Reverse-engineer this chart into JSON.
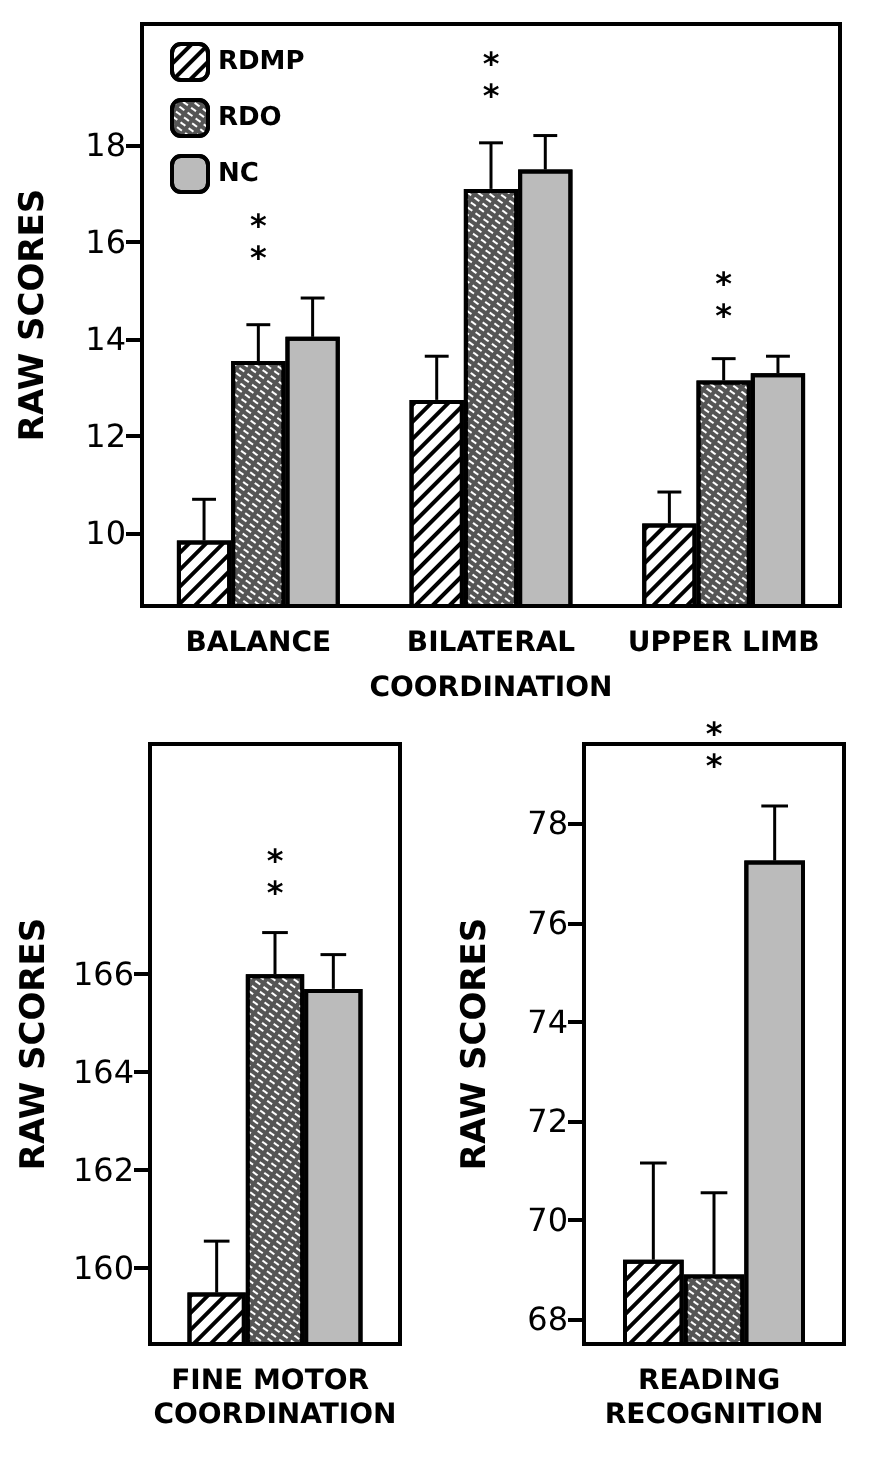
{
  "chart_data": [
    {
      "type": "bar",
      "categories": [
        "BALANCE",
        "BILATERAL",
        "UPPER LIMB"
      ],
      "xlabel": "COORDINATION",
      "ylabel": "RAW SCORES",
      "ylim": [
        8.5,
        20.5
      ],
      "yticks": [
        10,
        12,
        14,
        16,
        18
      ],
      "legend": "top left",
      "grid": false,
      "series": [
        {
          "name": "RDMP",
          "color": "#ffffff",
          "values": [
            9.85,
            12.75,
            10.2
          ],
          "errors": [
            [
              9.85,
              10.7
            ],
            [
              12.75,
              13.65
            ],
            [
              10.2,
              10.85
            ]
          ]
        },
        {
          "name": "RDO",
          "color": "#555555",
          "values": [
            13.55,
            17.1,
            13.15
          ],
          "errors": [
            [
              13.55,
              14.3
            ],
            [
              17.1,
              18.05
            ],
            [
              13.15,
              13.6
            ]
          ]
        },
        {
          "name": "NC",
          "color": "#bbbbbb",
          "values": [
            14.05,
            17.5,
            13.3
          ],
          "errors": [
            [
              14.05,
              14.85
            ],
            [
              17.5,
              18.2
            ],
            [
              13.3,
              13.65
            ]
          ]
        }
      ],
      "annotations": [
        "*",
        "*",
        "*",
        "*",
        "*",
        "*"
      ]
    },
    {
      "type": "bar",
      "categories": [
        "FINE MOTOR COORDINATION"
      ],
      "ylabel": "RAW SCORES",
      "ylim": [
        158.45,
        170.7
      ],
      "yticks": [
        160,
        162,
        164,
        166
      ],
      "legend": false,
      "grid": false,
      "series": [
        {
          "color": "#ffffff",
          "values": [
            159.5
          ],
          "errors": [
            [
              159.5,
              160.55
            ]
          ]
        },
        {
          "color": "#555555",
          "values": [
            166.0
          ],
          "errors": [
            [
              166.0,
              166.85
            ]
          ]
        },
        {
          "color": "#bbbbbb",
          "values": [
            165.7
          ],
          "errors": [
            [
              165.7,
              166.4
            ]
          ]
        }
      ],
      "annotations": [
        "*",
        "*"
      ]
    },
    {
      "type": "bar",
      "categories": [
        "READING RECOGNITION"
      ],
      "ylabel": "RAW SCORES",
      "ylim": [
        67.5,
        79.6
      ],
      "yticks": [
        68,
        70,
        72,
        74,
        76,
        78
      ],
      "legend": false,
      "grid": false,
      "series": [
        {
          "color": "#ffffff",
          "values": [
            69.2
          ],
          "errors": [
            [
              69.2,
              71.15
            ]
          ]
        },
        {
          "color": "#555555",
          "values": [
            68.9
          ],
          "errors": [
            [
              68.9,
              70.55
            ]
          ]
        },
        {
          "color": "#bbbbbb",
          "values": [
            77.25
          ],
          "errors": [
            [
              77.25,
              78.35
            ]
          ]
        }
      ],
      "annotations": [
        "*",
        "*"
      ]
    }
  ]
}
